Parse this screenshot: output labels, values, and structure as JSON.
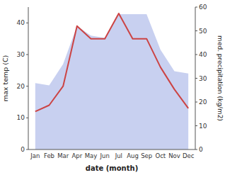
{
  "chart_data": {
    "type": "line",
    "xlabel": "date (month)",
    "ylabel": "max temp (C)",
    "y2label": "med. precipitation (kg/m2)",
    "categories": [
      "Jan",
      "Feb",
      "Mar",
      "Apr",
      "May",
      "Jun",
      "Jul",
      "Aug",
      "Sep",
      "Oct",
      "Nov",
      "Dec"
    ],
    "series": [
      {
        "type": "area",
        "axis": "y2",
        "color": "#c8d0f0",
        "values": [
          28,
          27,
          36,
          52,
          48,
          47,
          57,
          57,
          57,
          42,
          33,
          32
        ]
      },
      {
        "type": "line",
        "color": "#cc4444",
        "values": [
          12,
          14,
          20,
          39,
          35,
          35,
          43,
          35,
          35,
          26,
          19,
          13
        ]
      }
    ],
    "ylim": [
      0,
      45
    ],
    "yticks": [
      0,
      10,
      20,
      30,
      40
    ],
    "y2lim": [
      0,
      60
    ],
    "y2ticks": [
      0,
      10,
      20,
      30,
      40,
      50,
      60
    ],
    "grid": false
  }
}
